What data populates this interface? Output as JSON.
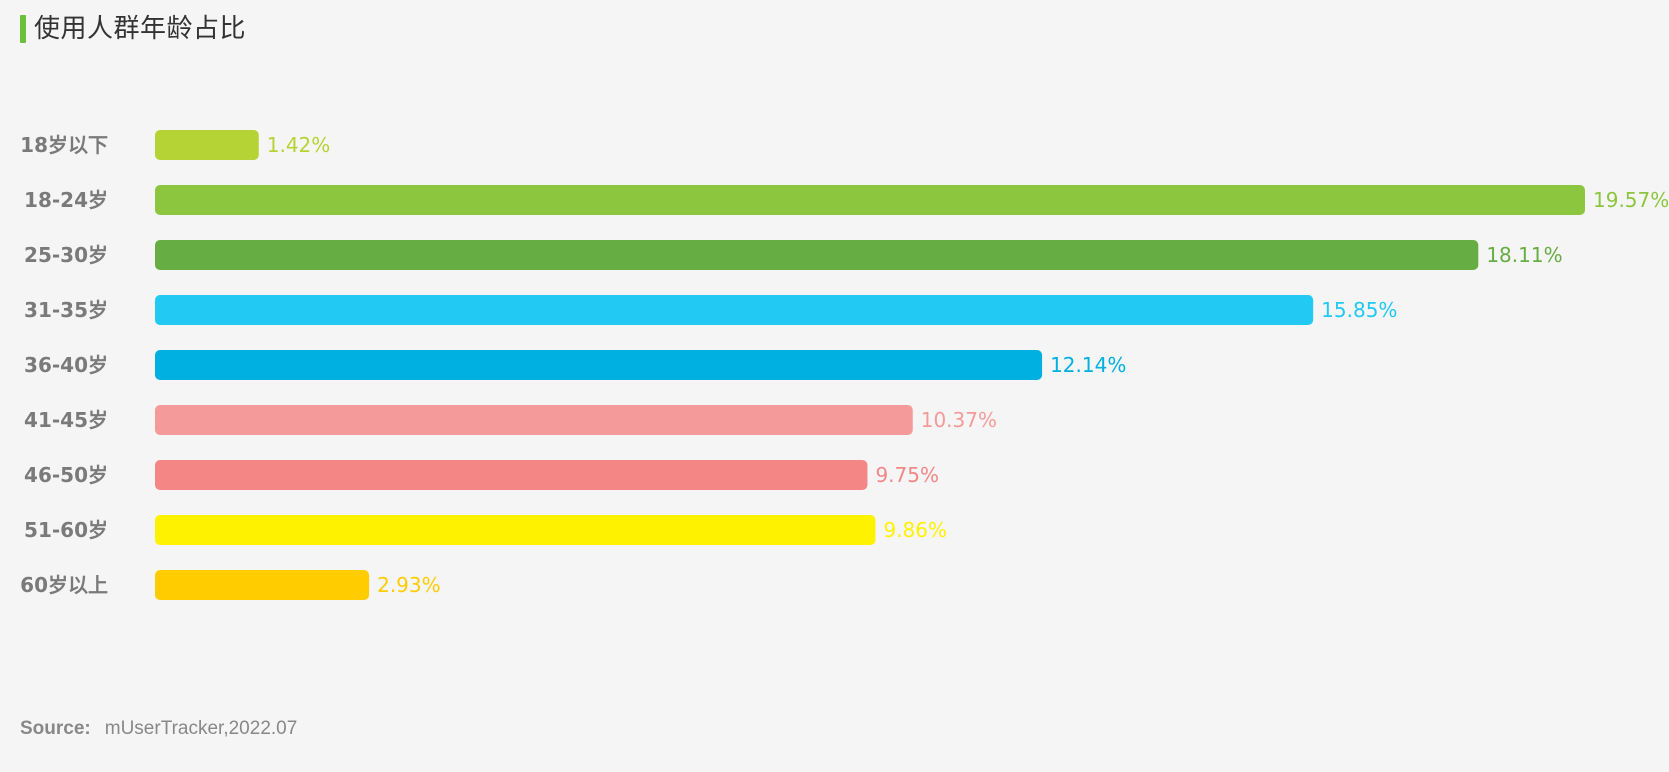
{
  "header": {
    "title": "使用人群年龄占比",
    "accent_color": "#6cbf3a"
  },
  "chart_data": {
    "type": "bar",
    "orientation": "horizontal",
    "title": "使用人群年龄占比",
    "xlabel": "",
    "ylabel": "",
    "categories": [
      "18岁以下",
      "18-24岁",
      "25-30岁",
      "31-35岁",
      "36-40岁",
      "41-45岁",
      "46-50岁",
      "51-60岁",
      "60岁以上"
    ],
    "values": [
      1.42,
      19.57,
      18.11,
      15.85,
      12.14,
      10.37,
      9.75,
      9.86,
      2.93
    ],
    "value_labels": [
      "1.42%",
      "19.57%",
      "18.11%",
      "15.85%",
      "12.14%",
      "10.37%",
      "9.75%",
      "9.86%",
      "2.93%"
    ],
    "colors": [
      "#b5d334",
      "#8cc63f",
      "#66ad43",
      "#22c9f3",
      "#00b0e0",
      "#f59a9a",
      "#f48686",
      "#fff200",
      "#ffcc00"
    ],
    "label_colors": [
      "#b5d334",
      "#8cc63f",
      "#66ad43",
      "#22c9f3",
      "#00b0e0",
      "#f59a9a",
      "#f48686",
      "#fff200",
      "#ffcc00"
    ],
    "grid": false,
    "legend": "none"
  },
  "footer": {
    "source_label": "Source:",
    "source_text": "mUserTracker,2022.07"
  }
}
